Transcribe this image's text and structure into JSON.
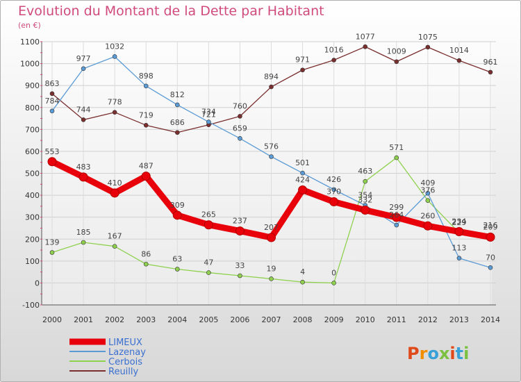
{
  "title": "Evolution du Montant de la Dette par Habitant",
  "subtitle": "(en €)",
  "logo_text": "Proxiti",
  "chart_data": {
    "type": "line",
    "x": [
      2000,
      2001,
      2002,
      2003,
      2004,
      2005,
      2006,
      2007,
      2008,
      2009,
      2010,
      2011,
      2012,
      2013,
      2014
    ],
    "ylim": [
      -100,
      1100
    ],
    "yticks": [
      -100,
      0,
      100,
      200,
      300,
      400,
      500,
      600,
      700,
      800,
      900,
      1000,
      1100
    ],
    "grid": true,
    "legend_position": "bottom-left",
    "series": [
      {
        "name": "LIMEUX",
        "color": "#e8000b",
        "values": [
          553,
          483,
          410,
          487,
          309,
          265,
          237,
          207,
          424,
          370,
          332,
          299,
          260,
          234,
          209
        ]
      },
      {
        "name": "Lazenay",
        "color": "#5b9bd5",
        "values": [
          784,
          977,
          1032,
          898,
          812,
          734,
          659,
          576,
          501,
          426,
          354,
          264,
          409,
          113,
          70
        ]
      },
      {
        "name": "Cerbois",
        "color": "#8fd14f",
        "values": [
          139,
          185,
          167,
          86,
          63,
          47,
          33,
          19,
          4,
          0,
          463,
          571,
          376,
          229,
          216
        ]
      },
      {
        "name": "Reuilly",
        "color": "#7a2e2e",
        "values": [
          863,
          744,
          778,
          719,
          686,
          721,
          760,
          894,
          971,
          1016,
          1077,
          1009,
          1075,
          1014,
          961
        ]
      }
    ]
  }
}
